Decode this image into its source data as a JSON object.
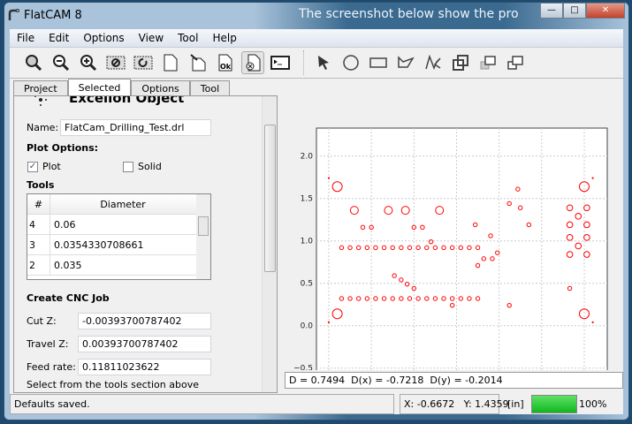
{
  "window": {
    "title": "FlatCAM 8",
    "bg_text": "The screenshot below show the pro"
  },
  "menu": [
    "File",
    "Edit",
    "Options",
    "View",
    "Tool",
    "Help"
  ],
  "toolbar": {
    "icons": [
      "zoom-fit-icon",
      "zoom-out-icon",
      "zoom-in-icon",
      "clear-plot-icon",
      "replot-icon",
      "new-project-icon",
      "open-file-icon",
      "save-ok-icon",
      "delete-icon",
      "shell-icon",
      "pointer-icon",
      "circle-icon",
      "rectangle-icon",
      "polygon-icon",
      "path-icon",
      "union-icon",
      "intersection-icon",
      "subtract-icon"
    ]
  },
  "tabs": [
    "Project",
    "Selected",
    "Options",
    "Tool"
  ],
  "active_tab": "Selected",
  "panel": {
    "heading": "Excellon Object",
    "name_label": "Name:",
    "name_value": "FlatCam_Drilling_Test.drl",
    "plot_options": "Plot Options:",
    "plot_label": "Plot",
    "plot_checked": true,
    "solid_label": "Solid",
    "solid_checked": false,
    "tools_label": "Tools",
    "tools_headers": [
      "#",
      "Diameter"
    ],
    "tools_rows": [
      [
        "4",
        "0.06"
      ],
      [
        "3",
        "0.0354330708661"
      ],
      [
        "2",
        "0.035"
      ]
    ],
    "cnc_label": "Create CNC Job",
    "cutz_label": "Cut Z:",
    "cutz_value": "-0.00393700787402",
    "travelz_label": "Travel Z:",
    "travelz_value": "0.00393700787402",
    "feed_label": "Feed rate:",
    "feed_value": "0.11811023622",
    "hint": "Select from the tools section above"
  },
  "measure": "D = 0.7494  D(x) = -0.7218  D(y) = -0.2014",
  "status": {
    "message": "Defaults saved.",
    "coords": "X: -0.6672   Y: 1.4359",
    "units": "[in]",
    "progress": 100,
    "progress_label": "100%",
    "progress_color": "#1fc22a"
  },
  "chart_data": {
    "type": "scatter",
    "marker": "open-circle",
    "color": "#ff0000",
    "xlim": [
      -0.145,
      3.27
    ],
    "ylim": [
      -0.555,
      2.33
    ],
    "xticks": [
      "0.0",
      "0.5",
      "1.0",
      "1.5",
      "2.0",
      "2.5",
      "3.0"
    ],
    "yticks": [
      "-0.5",
      "0.0",
      "0.5",
      "1.0",
      "1.5",
      "2.0"
    ],
    "grid": true,
    "points_large": [
      [
        0.1,
        1.64
      ],
      [
        0.1,
        0.14
      ],
      [
        3.0,
        1.64
      ],
      [
        3.0,
        0.14
      ]
    ],
    "points_medium": [
      [
        0.3,
        1.36
      ],
      [
        0.7,
        1.36
      ],
      [
        0.9,
        1.36
      ],
      [
        1.3,
        1.36
      ]
    ],
    "points_mid": [
      [
        2.83,
        1.39
      ],
      [
        3.03,
        1.39
      ],
      [
        2.93,
        1.29
      ],
      [
        2.83,
        1.19
      ],
      [
        3.03,
        1.19
      ],
      [
        2.83,
        1.04
      ],
      [
        3.03,
        1.04
      ],
      [
        2.93,
        0.94
      ],
      [
        2.83,
        0.84
      ],
      [
        3.03,
        0.84
      ]
    ],
    "points_small": [
      [
        0.4,
        1.16
      ],
      [
        0.5,
        1.16
      ],
      [
        1.0,
        1.16
      ],
      [
        1.1,
        1.16
      ],
      [
        1.2,
        0.99
      ],
      [
        1.72,
        1.19
      ],
      [
        2.12,
        1.44
      ],
      [
        2.22,
        1.61
      ],
      [
        2.25,
        1.39
      ],
      [
        2.35,
        1.19
      ],
      [
        1.9,
        1.06
      ],
      [
        1.98,
        0.86
      ],
      [
        1.82,
        0.79
      ],
      [
        1.92,
        0.79
      ],
      [
        1.75,
        0.71
      ],
      [
        0.77,
        0.59
      ],
      [
        0.85,
        0.54
      ],
      [
        0.92,
        0.49
      ],
      [
        1.0,
        0.44
      ],
      [
        1.45,
        0.24
      ],
      [
        2.12,
        0.24
      ],
      [
        2.83,
        0.44
      ],
      [
        0.15,
        0.92
      ],
      [
        0.25,
        0.92
      ],
      [
        0.35,
        0.92
      ],
      [
        0.45,
        0.92
      ],
      [
        0.55,
        0.92
      ],
      [
        0.65,
        0.92
      ],
      [
        0.75,
        0.92
      ],
      [
        0.85,
        0.92
      ],
      [
        0.95,
        0.92
      ],
      [
        1.05,
        0.92
      ],
      [
        1.15,
        0.92
      ],
      [
        1.25,
        0.92
      ],
      [
        1.35,
        0.92
      ],
      [
        1.45,
        0.92
      ],
      [
        1.55,
        0.92
      ],
      [
        1.65,
        0.92
      ],
      [
        1.75,
        0.92
      ],
      [
        0.15,
        0.32
      ],
      [
        0.25,
        0.32
      ],
      [
        0.35,
        0.32
      ],
      [
        0.45,
        0.32
      ],
      [
        0.55,
        0.32
      ],
      [
        0.65,
        0.32
      ],
      [
        0.75,
        0.32
      ],
      [
        0.85,
        0.32
      ],
      [
        0.95,
        0.32
      ],
      [
        1.05,
        0.32
      ],
      [
        1.15,
        0.32
      ],
      [
        1.25,
        0.32
      ],
      [
        1.35,
        0.32
      ],
      [
        1.45,
        0.32
      ],
      [
        1.55,
        0.32
      ],
      [
        1.65,
        0.32
      ],
      [
        1.75,
        0.32
      ]
    ],
    "points_tiny": [
      [
        0.0,
        1.74
      ],
      [
        0.0,
        0.04
      ],
      [
        3.1,
        1.74
      ],
      [
        3.1,
        0.04
      ]
    ]
  }
}
